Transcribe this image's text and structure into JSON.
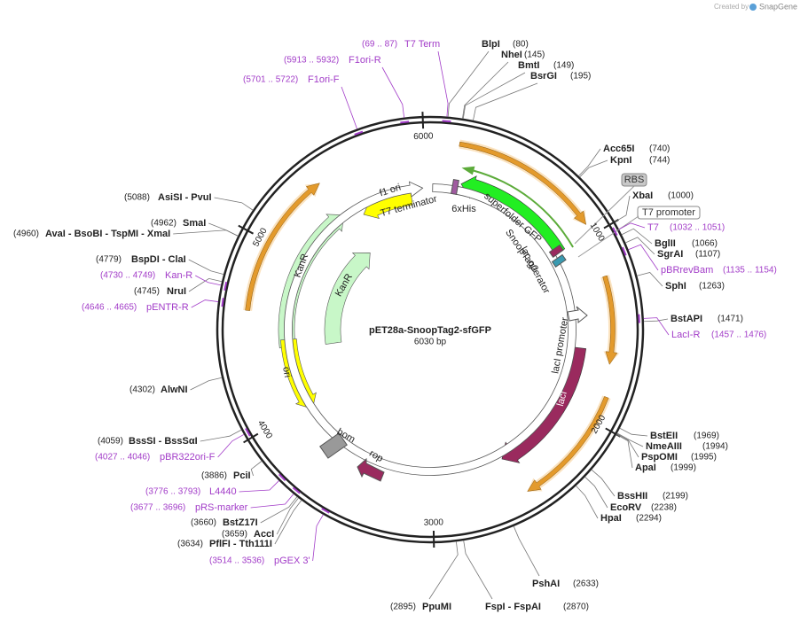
{
  "watermark": [
    "Created by",
    "SnapGene"
  ],
  "title": "pET28a-SnoopTag2-sfGFP",
  "size": "6030 bp",
  "ticks": [
    6000,
    1000,
    2000,
    3000,
    4000,
    5000
  ],
  "enzymes": [
    {
      "name": "BlpI",
      "pos": "(80)"
    },
    {
      "name": "NheI",
      "pos": "(145)"
    },
    {
      "name": "BmtI",
      "pos": "(149)"
    },
    {
      "name": "BsrGI",
      "pos": "(195)"
    },
    {
      "name": "Acc65I",
      "pos": "(740)"
    },
    {
      "name": "KpnI",
      "pos": "(744)"
    },
    {
      "name": "XbaI",
      "pos": "(1000)"
    },
    {
      "name": "BglII",
      "pos": "(1066)"
    },
    {
      "name": "SgrAI",
      "pos": "(1107)"
    },
    {
      "name": "SphI",
      "pos": "(1263)"
    },
    {
      "name": "BstAPI",
      "pos": "(1471)"
    },
    {
      "name": "BstEII",
      "pos": "(1969)"
    },
    {
      "name": "NmeAIII",
      "pos": "(1994)"
    },
    {
      "name": "PspOMI",
      "pos": "(1995)"
    },
    {
      "name": "ApaI",
      "pos": "(1999)"
    },
    {
      "name": "BssHII",
      "pos": "(2199)"
    },
    {
      "name": "EcoRV",
      "pos": "(2238)"
    },
    {
      "name": "HpaI",
      "pos": "(2294)"
    },
    {
      "name": "PshAI",
      "pos": "(2633)"
    },
    {
      "name": "FspI - FspAI",
      "pos": "(2870)"
    },
    {
      "name": "PpuMI",
      "pos": "(2895)"
    },
    {
      "name": "PflFI - Tth111I",
      "pos": "(3634)"
    },
    {
      "name": "AccI",
      "pos": "(3659)"
    },
    {
      "name": "BstZ17I",
      "pos": "(3660)"
    },
    {
      "name": "PciI",
      "pos": "(3886)"
    },
    {
      "name": "BssSI - BssSαI",
      "pos": "(4059)"
    },
    {
      "name": "AlwNI",
      "pos": "(4302)"
    },
    {
      "name": "NruI",
      "pos": "(4745)"
    },
    {
      "name": "BspDI - ClaI",
      "pos": "(4779)"
    },
    {
      "name": "AvaI - BsoBI - TspMI - XmaI",
      "pos": "(4960)"
    },
    {
      "name": "SmaI",
      "pos": "(4962)"
    },
    {
      "name": "AsiSI - PvuI",
      "pos": "(5088)"
    }
  ],
  "primers": [
    {
      "name": "T7 Term",
      "range": "(69 .. 87)"
    },
    {
      "name": "F1ori-R",
      "range": "(5913 .. 5932)"
    },
    {
      "name": "F1ori-F",
      "range": "(5701 .. 5722)"
    },
    {
      "name": "T7",
      "range": "(1032 .. 1051)"
    },
    {
      "name": "pBRrevBam",
      "range": "(1135 .. 1154)"
    },
    {
      "name": "LacI-R",
      "range": "(1457 .. 1476)"
    },
    {
      "name": "Kan-R",
      "range": "(4730 .. 4749)"
    },
    {
      "name": "pENTR-R",
      "range": "(4646 .. 4665)"
    },
    {
      "name": "pBR322ori-F",
      "range": "(4027 .. 4046)"
    },
    {
      "name": "L4440",
      "range": "(3776 .. 3793)"
    },
    {
      "name": "pRS-marker",
      "range": "(3677 .. 3696)"
    },
    {
      "name": "pGEX 3'",
      "range": "(3514 .. 3536)"
    }
  ],
  "features": [
    "f1 ori",
    "T7 terminator",
    "6xHis",
    "superfolder GFP",
    "SnoopTag2",
    "lac operator",
    "lacI promoter",
    "lacI",
    "KanR",
    "KanR",
    "ori",
    "bom",
    "rop",
    "RBS",
    "T7 promoter"
  ]
}
